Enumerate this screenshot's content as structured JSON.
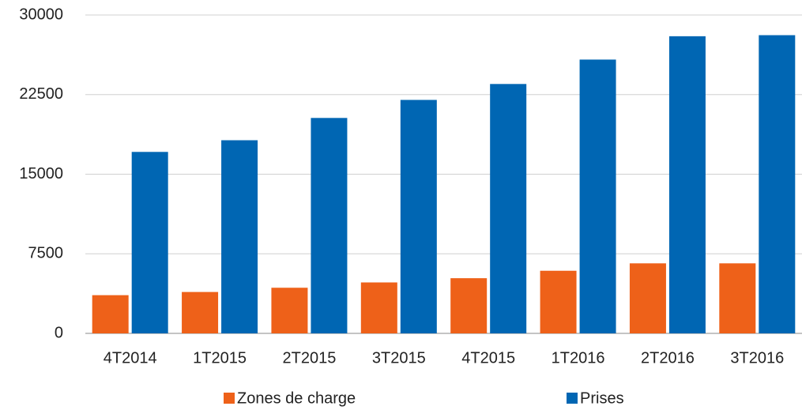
{
  "chart_data": {
    "type": "bar",
    "categories": [
      "4T2014",
      "1T2015",
      "2T2015",
      "3T2015",
      "4T2015",
      "1T2016",
      "2T2016",
      "3T2016"
    ],
    "series": [
      {
        "name": "Zones de charge",
        "color": "#ee6119",
        "values": [
          3600,
          3900,
          4300,
          4800,
          5200,
          5900,
          6600,
          6600
        ]
      },
      {
        "name": "Prises",
        "color": "#0066b3",
        "values": [
          17100,
          18200,
          20300,
          22000,
          23500,
          25800,
          28000,
          28100
        ]
      }
    ],
    "ylim": [
      0,
      30000
    ],
    "yticks": [
      0,
      7500,
      15000,
      22500,
      30000
    ],
    "grid": true,
    "legend": "bottom"
  }
}
